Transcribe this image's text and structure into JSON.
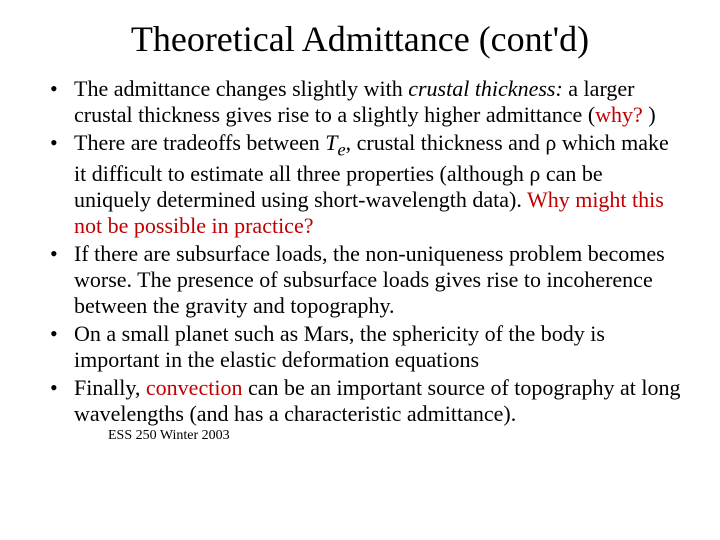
{
  "colors": {
    "text": "#000000",
    "highlight": "#c00000",
    "background": "#ffffff"
  },
  "typography": {
    "title_fontsize": 36,
    "body_fontsize": 22,
    "footer_fontsize": 14,
    "font_family": "Times New Roman"
  },
  "title": "Theoretical Admittance (cont'd)",
  "bullets": {
    "b1a": "The admittance changes slightly with ",
    "b1b": "crustal thickness:",
    "b1c": " a larger crustal thickness gives rise to a slightly higher admittance (",
    "b1d": "why?",
    "b1e": " )",
    "b2a": "There are tradeoffs between ",
    "b2b": "T",
    "b2c": "e",
    "b2d": ", crustal thickness and ρ which make it difficult to estimate all three properties (although ρ can be uniquely determined using short-wavelength data). ",
    "b2e": "Why might this not be possible in practice?",
    "b3a": "If there are subsurface loads, the non-uniqueness problem becomes worse. The presence of subsurface loads gives rise to incoherence between the gravity and topography.",
    "b4a": "On a small planet such as Mars, the sphericity of the body is important in the elastic deformation equations",
    "b5a": "Finally, ",
    "b5b": "convection",
    "b5c": " can be an important source of topography at long wavelengths (and has a characteristic admittance)."
  },
  "footer": "ESS 250 Winter 2003"
}
